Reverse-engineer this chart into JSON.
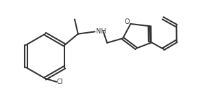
{
  "background_color": "#ffffff",
  "line_color": "#333333",
  "line_width": 1.5,
  "figsize": [
    3.18,
    1.45
  ],
  "dpi": 100,
  "nh_label": "NH",
  "cl_label": "Cl",
  "o_label": "O",
  "font_size": 7
}
